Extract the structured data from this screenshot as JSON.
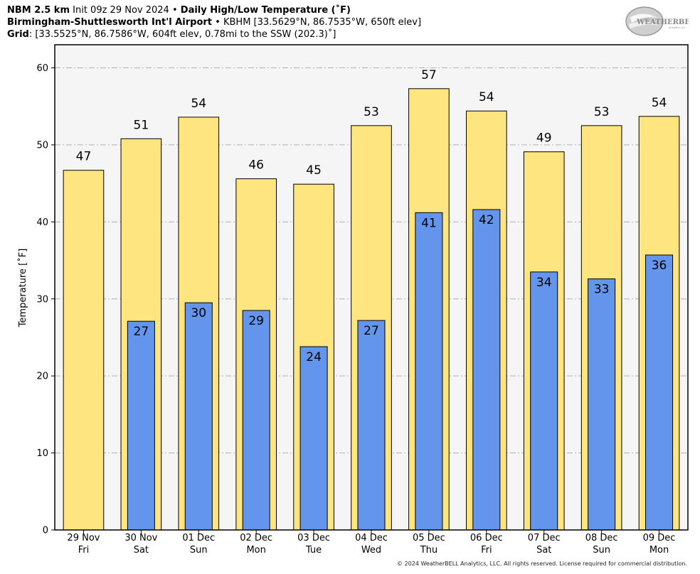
{
  "header": {
    "line1": {
      "model": "NBM 2.5 km",
      "init": "Init 09z 29 Nov 2024",
      "bullet": "•",
      "product": "Daily High/Low Temperature (˚F)"
    },
    "line2": {
      "station": "Birmingham-Shuttlesworth Int'l Airport",
      "bullet": "•",
      "details": "KBHM [33.5629°N, 86.7535°W, 650ft elev]"
    },
    "line3": {
      "label": "Grid",
      "details": ": [33.5525°N, 86.7586°W, 604ft elev, 0.78mi to the SSW (202.3)˚]"
    }
  },
  "logo": {
    "text_main": "WEATHERBELL",
    "text_sub": "Analytics LLC"
  },
  "copyright": "© 2024 WeatherBELL Analytics, LLC. All rights reserved. License required for commercial distribution.",
  "colors": {
    "high_fill": "#ffe57f",
    "low_fill": "#6495ed",
    "plot_bg": "#f5f5f5",
    "grid": "#b0b0b0"
  },
  "chart_data": {
    "type": "bar",
    "ylabel": "Temperature [˚F]",
    "ylim": [
      0,
      63
    ],
    "yticks": [
      0,
      10,
      20,
      30,
      40,
      50,
      60
    ],
    "grid": "horizontal dash-dot",
    "categories": [
      [
        "29 Nov",
        "Fri"
      ],
      [
        "30 Nov",
        "Sat"
      ],
      [
        "01 Dec",
        "Sun"
      ],
      [
        "02 Dec",
        "Mon"
      ],
      [
        "03 Dec",
        "Tue"
      ],
      [
        "04 Dec",
        "Wed"
      ],
      [
        "05 Dec",
        "Thu"
      ],
      [
        "06 Dec",
        "Fri"
      ],
      [
        "07 Dec",
        "Sat"
      ],
      [
        "08 Dec",
        "Sun"
      ],
      [
        "09 Dec",
        "Mon"
      ]
    ],
    "series": [
      {
        "values": [
          46.7,
          50.8,
          53.6,
          45.6,
          44.9,
          52.5,
          57.3,
          54.4,
          49.1,
          52.5,
          53.7
        ],
        "labels": [
          "47",
          "51",
          "54",
          "46",
          "45",
          "53",
          "57",
          "54",
          "49",
          "53",
          "54"
        ]
      },
      {
        "values": [
          null,
          27.1,
          29.5,
          28.5,
          23.8,
          27.2,
          41.2,
          41.6,
          33.5,
          32.6,
          35.7
        ],
        "labels": [
          "",
          "27",
          "30",
          "29",
          "24",
          "27",
          "41",
          "42",
          "34",
          "33",
          "36"
        ]
      }
    ]
  }
}
